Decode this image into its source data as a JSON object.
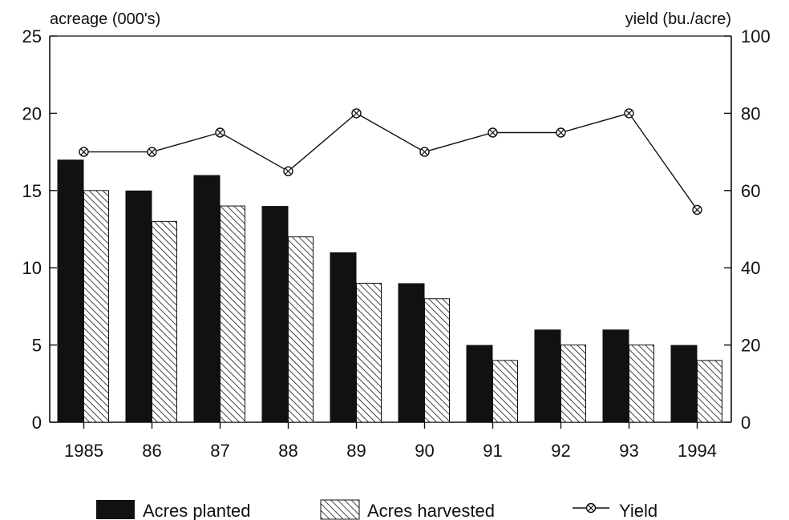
{
  "chart_data": {
    "type": "bar",
    "categories": [
      "1985",
      "86",
      "87",
      "88",
      "89",
      "90",
      "91",
      "92",
      "93",
      "1994"
    ],
    "series": [
      {
        "name": "Acres planted",
        "axis": "left",
        "kind": "bar",
        "fill": "solid",
        "color": "#111111",
        "values": [
          17,
          15,
          16,
          14,
          11,
          9,
          5,
          6,
          6,
          5
        ]
      },
      {
        "name": "Acres harvested",
        "axis": "left",
        "kind": "bar",
        "fill": "hatched",
        "color": "#111111",
        "values": [
          15,
          13,
          14,
          12,
          9,
          8,
          4,
          5,
          5,
          4
        ]
      },
      {
        "name": "Yield",
        "axis": "right",
        "kind": "line",
        "marker": "circle-x",
        "color": "#111111",
        "values": [
          70,
          70,
          75,
          65,
          80,
          70,
          75,
          75,
          80,
          55
        ]
      }
    ],
    "ylabel_left": "acreage (000's)",
    "ylabel_right": "yield (bu./acre)",
    "ylim_left": [
      0,
      25
    ],
    "ylim_right": [
      0,
      100
    ],
    "yticks_left": [
      "0",
      "5",
      "10",
      "15",
      "20",
      "25"
    ],
    "yticks_right": [
      "0",
      "20",
      "40",
      "60",
      "80",
      "100"
    ],
    "legend_position": "bottom",
    "grid": false
  }
}
